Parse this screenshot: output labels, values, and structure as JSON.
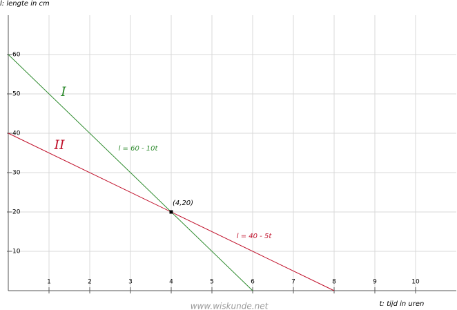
{
  "chart_data": {
    "type": "line",
    "ylabel": "l: lengte in cm",
    "xlabel": "t: tijd in uren",
    "watermark": "www.wiskunde.net",
    "xlim": [
      0,
      11
    ],
    "ylim": [
      0,
      70
    ],
    "xticks": [
      1,
      2,
      3,
      4,
      5,
      6,
      7,
      8,
      9,
      10
    ],
    "yticks": [
      10,
      20,
      30,
      40,
      50,
      60
    ],
    "grid": true,
    "series": [
      {
        "name": "I",
        "equation": "l = 60 - 10t",
        "color": "#2e8b2e",
        "x": [
          0,
          6
        ],
        "values": [
          60,
          0
        ]
      },
      {
        "name": "II",
        "equation": "l = 40 - 5t",
        "color": "#c0102a",
        "x": [
          0,
          8
        ],
        "values": [
          40,
          0
        ]
      }
    ],
    "point": {
      "x": 4,
      "y": 20,
      "label": "(4,20)"
    }
  }
}
